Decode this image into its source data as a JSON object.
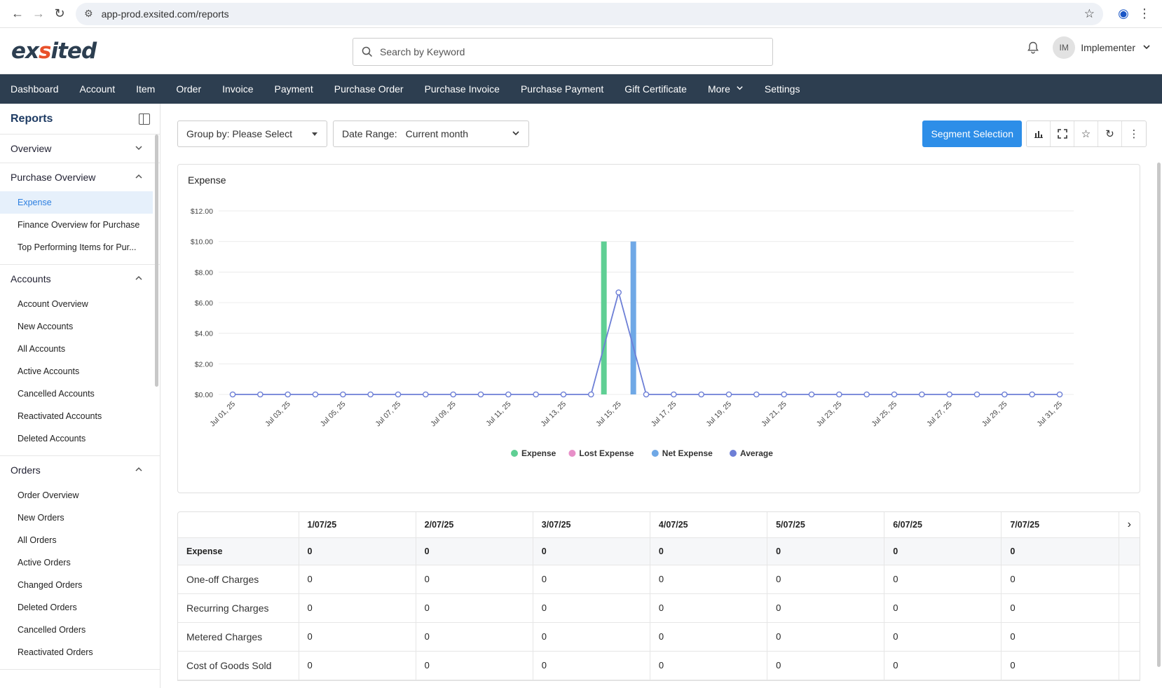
{
  "browser": {
    "url": "app-prod.exsited.com/reports"
  },
  "header": {
    "logo_left": "ex",
    "logo_mark": "s",
    "logo_right": "ited",
    "search_placeholder": "Search by Keyword",
    "avatar_initials": "IM",
    "user_name": "Implementer"
  },
  "nav": {
    "items": [
      "Dashboard",
      "Account",
      "Item",
      "Order",
      "Invoice",
      "Payment",
      "Purchase Order",
      "Purchase Invoice",
      "Purchase Payment",
      "Gift Certificate",
      "More",
      "Settings"
    ]
  },
  "sidebar": {
    "title": "Reports",
    "sections": [
      {
        "label": "Overview",
        "expanded": false,
        "items": []
      },
      {
        "label": "Purchase Overview",
        "expanded": true,
        "items": [
          "Expense",
          "Finance Overview for Purchase",
          "Top Performing Items for Pur..."
        ]
      },
      {
        "label": "Accounts",
        "expanded": true,
        "items": [
          "Account Overview",
          "New Accounts",
          "All Accounts",
          "Active Accounts",
          "Cancelled Accounts",
          "Reactivated Accounts",
          "Deleted Accounts"
        ]
      },
      {
        "label": "Orders",
        "expanded": true,
        "items": [
          "Order Overview",
          "New Orders",
          "All Orders",
          "Active Orders",
          "Changed Orders",
          "Deleted Orders",
          "Cancelled Orders",
          "Reactivated Orders"
        ]
      }
    ],
    "active_item": "Expense"
  },
  "toolbar": {
    "group_by": "Group by: Please Select",
    "date_range_label": "Date Range:",
    "date_range_value": "Current month",
    "segment_button": "Segment Selection"
  },
  "chart_data": {
    "type": "bar",
    "title": "Expense",
    "xlabel": "",
    "ylabel": "",
    "ylim": [
      0,
      12
    ],
    "y_ticks": [
      "$0.00",
      "$2.00",
      "$4.00",
      "$6.00",
      "$8.00",
      "$10.00",
      "$12.00"
    ],
    "x_tick_labels": [
      "Jul 01, 25",
      "Jul 03, 25",
      "Jul 05, 25",
      "Jul 07, 25",
      "Jul 09, 25",
      "Jul 11, 25",
      "Jul 13, 25",
      "Jul 15, 25",
      "Jul 17, 25",
      "Jul 19, 25",
      "Jul 21, 25",
      "Jul 23, 25",
      "Jul 25, 25",
      "Jul 27, 25",
      "Jul 29, 25",
      "Jul 31, 25"
    ],
    "days": [
      1,
      2,
      3,
      4,
      5,
      6,
      7,
      8,
      9,
      10,
      11,
      12,
      13,
      14,
      15,
      16,
      17,
      18,
      19,
      20,
      21,
      22,
      23,
      24,
      25,
      26,
      27,
      28,
      29,
      30,
      31
    ],
    "series": [
      {
        "name": "Expense",
        "kind": "bar",
        "color": "#5fcf94",
        "values": [
          0,
          0,
          0,
          0,
          0,
          0,
          0,
          0,
          0,
          0,
          0,
          0,
          0,
          0,
          10,
          0,
          0,
          0,
          0,
          0,
          0,
          0,
          0,
          0,
          0,
          0,
          0,
          0,
          0,
          0,
          0
        ]
      },
      {
        "name": "Lost Expense",
        "kind": "bar",
        "color": "#e78fc8",
        "values": [
          0,
          0,
          0,
          0,
          0,
          0,
          0,
          0,
          0,
          0,
          0,
          0,
          0,
          0,
          0,
          0,
          0,
          0,
          0,
          0,
          0,
          0,
          0,
          0,
          0,
          0,
          0,
          0,
          0,
          0,
          0
        ]
      },
      {
        "name": "Net Expense",
        "kind": "bar",
        "color": "#6fa8e6",
        "values": [
          0,
          0,
          0,
          0,
          0,
          0,
          0,
          0,
          0,
          0,
          0,
          0,
          0,
          0,
          10,
          0,
          0,
          0,
          0,
          0,
          0,
          0,
          0,
          0,
          0,
          0,
          0,
          0,
          0,
          0,
          0
        ]
      },
      {
        "name": "Average",
        "kind": "line",
        "color": "#6d7fd6",
        "values": [
          0,
          0,
          0,
          0,
          0,
          0,
          0,
          0,
          0,
          0,
          0,
          0,
          0,
          0,
          6.67,
          0,
          0,
          0,
          0,
          0,
          0,
          0,
          0,
          0,
          0,
          0,
          0,
          0,
          0,
          0,
          0
        ]
      }
    ],
    "legend_position": "bottom",
    "grid": true
  },
  "table": {
    "columns": [
      "1/07/25",
      "2/07/25",
      "3/07/25",
      "4/07/25",
      "5/07/25",
      "6/07/25",
      "7/07/25"
    ],
    "rows": [
      {
        "label": "Expense",
        "bold": true,
        "values": [
          "0",
          "0",
          "0",
          "0",
          "0",
          "0",
          "0"
        ]
      },
      {
        "label": "One-off Charges",
        "bold": false,
        "values": [
          "0",
          "0",
          "0",
          "0",
          "0",
          "0",
          "0"
        ]
      },
      {
        "label": "Recurring Charges",
        "bold": false,
        "values": [
          "0",
          "0",
          "0",
          "0",
          "0",
          "0",
          "0"
        ]
      },
      {
        "label": "Metered Charges",
        "bold": false,
        "values": [
          "0",
          "0",
          "0",
          "0",
          "0",
          "0",
          "0"
        ]
      },
      {
        "label": "Cost of Goods Sold",
        "bold": false,
        "values": [
          "0",
          "0",
          "0",
          "0",
          "0",
          "0",
          "0"
        ]
      }
    ]
  },
  "colors": {
    "nav_bg": "#2d3e50",
    "accent": "#2d8ee8",
    "logo_mark": "#e8502a"
  }
}
